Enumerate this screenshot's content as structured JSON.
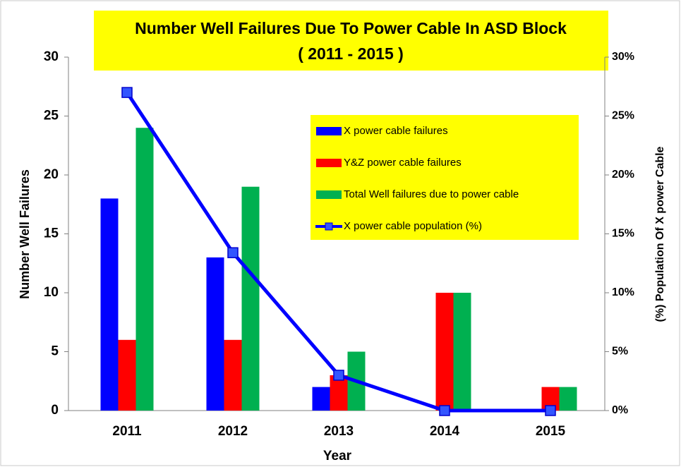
{
  "chart_data": {
    "type": "bar",
    "title": "Number Well Failures Due To Power Cable In ASD Block",
    "subtitle": "( 2011 - 2015 )",
    "xlabel": "Year",
    "ylabel": "Number Well Failures",
    "y2label": "(%) Population Of X power Cable",
    "categories": [
      "2011",
      "2012",
      "2013",
      "2014",
      "2015"
    ],
    "series": [
      {
        "name": "X power cable failures",
        "color": "#0000ff",
        "values": [
          18,
          13,
          2,
          0,
          0
        ]
      },
      {
        "name": "Y&Z power cable failures",
        "color": "#ff0000",
        "values": [
          6,
          6,
          3,
          10,
          2
        ]
      },
      {
        "name": "Total Well failures due to power cable",
        "color": "#00b050",
        "values": [
          24,
          19,
          5,
          10,
          2
        ]
      },
      {
        "name": "X power cable population (%)",
        "color": "#0000ff",
        "type": "line",
        "axis": "y2",
        "values": [
          27,
          13.4,
          3,
          0,
          0
        ]
      }
    ],
    "ylim": [
      0,
      30
    ],
    "yticks": [
      0,
      5,
      10,
      15,
      20,
      25,
      30
    ],
    "y2lim": [
      0,
      30
    ],
    "y2ticks": [
      {
        "value": 0,
        "label": "0%"
      },
      {
        "value": 5,
        "label": "5%"
      },
      {
        "value": 10,
        "label": "10%"
      },
      {
        "value": 15,
        "label": "15%"
      },
      {
        "value": 20,
        "label": "20%"
      },
      {
        "value": 25,
        "label": "25%"
      },
      {
        "value": 30,
        "label": "30%"
      }
    ],
    "grid": false
  }
}
